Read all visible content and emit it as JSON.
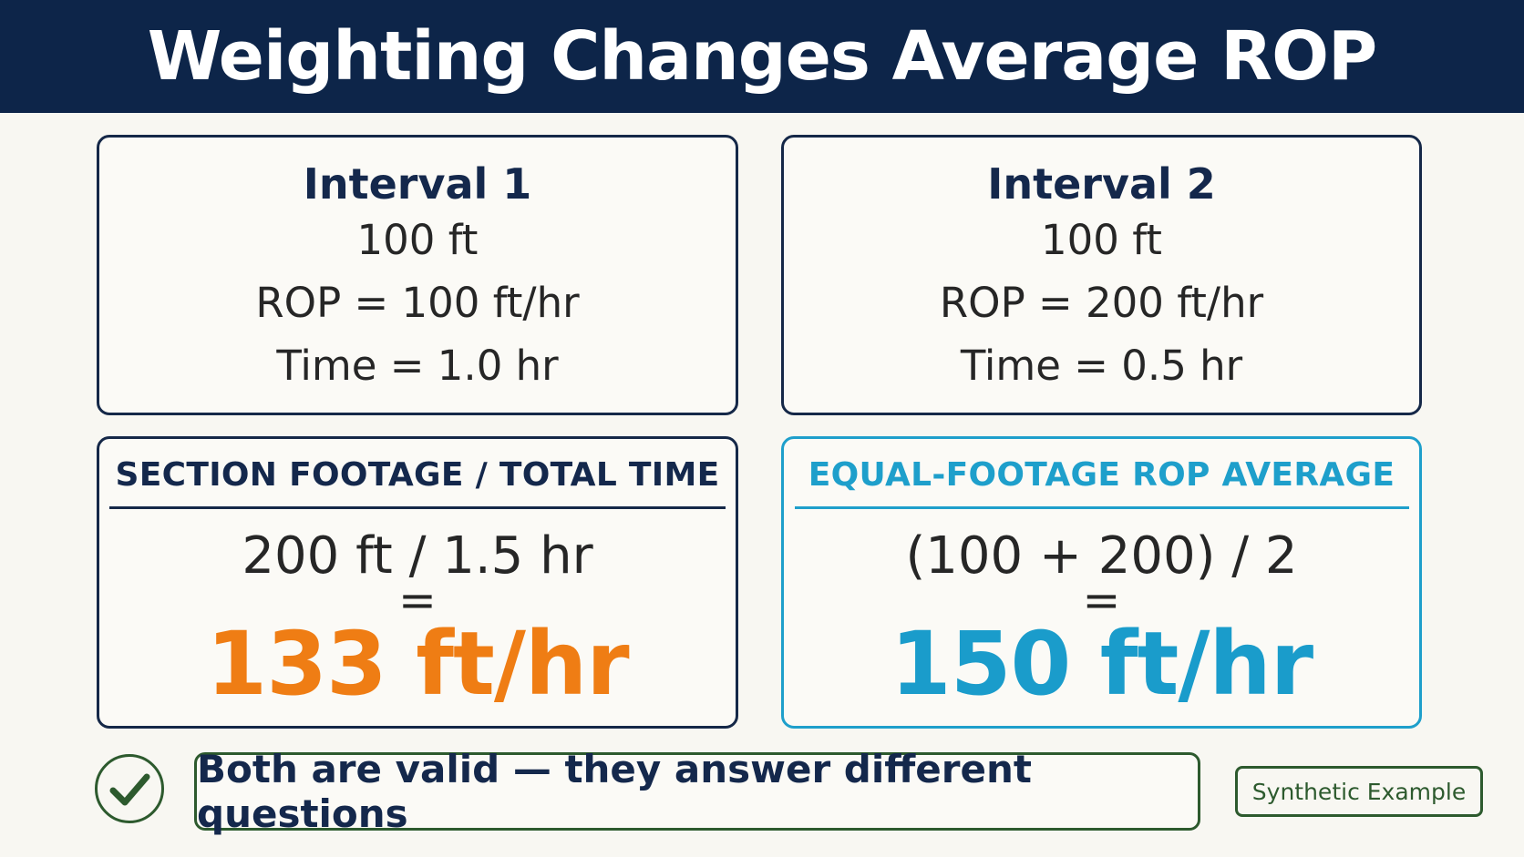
{
  "title": "Weighting Changes Average ROP",
  "intervals": [
    {
      "title": "Interval 1",
      "footage": "100 ft",
      "rop": "ROP = 100 ft/hr",
      "time": "Time = 1.0 hr"
    },
    {
      "title": "Interval 2",
      "footage": "100 ft",
      "rop": "ROP = 200 ft/hr",
      "time": "Time = 0.5 hr"
    }
  ],
  "methods": [
    {
      "label": "SECTION FOOTAGE / TOTAL TIME",
      "formula": "200 ft / 1.5 hr",
      "equals": "=",
      "result": "133 ft/hr",
      "color": "#ef7d14"
    },
    {
      "label": "EQUAL-FOOTAGE ROP AVERAGE",
      "formula": "(100 + 200) / 2",
      "equals": "=",
      "result": "150 ft/hr",
      "color": "#1a9ccb"
    }
  ],
  "conclusion": "Both are valid — they answer different questions",
  "badge": "Synthetic Example",
  "icons": {
    "conclusion": "checkmark-circle-icon"
  },
  "colors": {
    "header_bg": "#0d2549",
    "navy": "#14284c",
    "orange": "#ef7d14",
    "cyan": "#1a9ccb",
    "green": "#2d5a2e"
  }
}
